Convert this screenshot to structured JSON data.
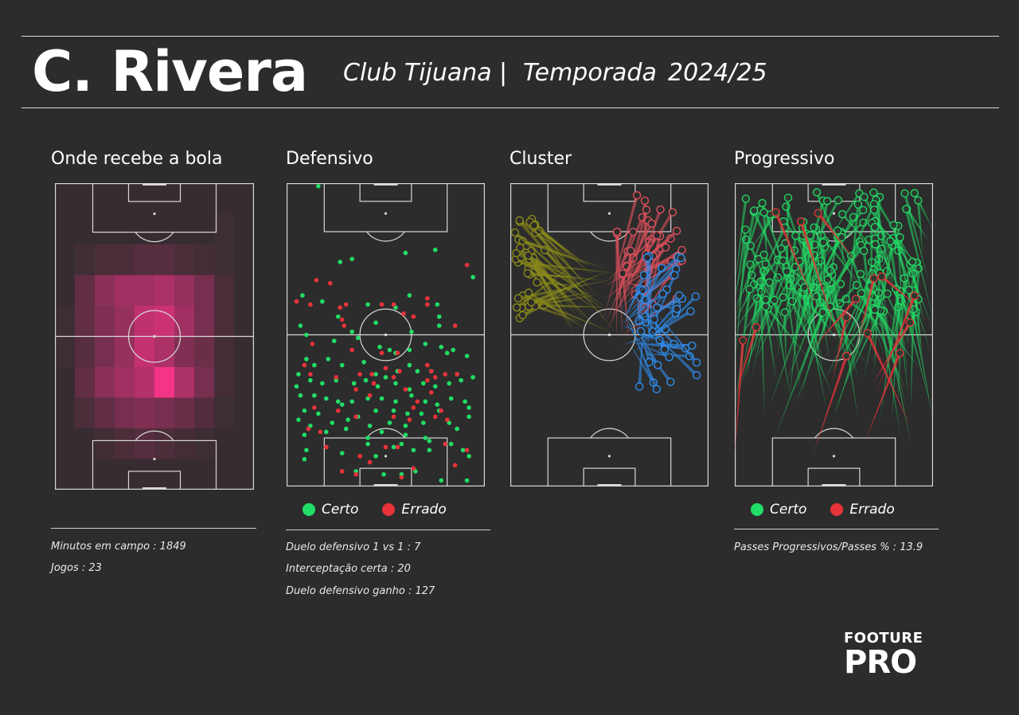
{
  "header": {
    "player_name": "C. Rivera",
    "club": "Club Tijuana",
    "divider": "|",
    "season_label": "Temporada",
    "season": "2024/25"
  },
  "panels": {
    "heatmap": {
      "title": "Onde recebe a bola"
    },
    "defensive": {
      "title": "Defensivo"
    },
    "cluster": {
      "title": "Cluster"
    },
    "progressive": {
      "title": "Progressivo"
    }
  },
  "legend": {
    "correct_label": "Certo",
    "wrong_label": "Errado",
    "correct_color": "#22dd66",
    "wrong_color": "#e8333a"
  },
  "stats": {
    "minutes": "Minutos em campo : 1849",
    "games": "Jogos : 23",
    "duel_1v1": "Duelo defensivo 1 vs 1 :  7",
    "interceptions": "Interceptação certa :  20",
    "duels_won": "Duelo defensivo ganho :  127",
    "prog_pct": "Passes Progressivos/Passes % :  13.9"
  },
  "logo": {
    "line1": "FOOTURE",
    "line2": "PRO"
  },
  "chart_data": [
    {
      "type": "heatmap",
      "title": "Onde recebe a bola",
      "grid_cols": 10,
      "grid_rows": 10,
      "values": [
        [
          0.05,
          0.05,
          0.05,
          0.05,
          0.05,
          0.05,
          0.05,
          0.05,
          0.05,
          0.05
        ],
        [
          0.05,
          0.05,
          0.05,
          0.05,
          0.05,
          0.05,
          0.05,
          0.05,
          0.08,
          0.05
        ],
        [
          0.05,
          0.1,
          0.15,
          0.15,
          0.2,
          0.2,
          0.15,
          0.12,
          0.08,
          0.05
        ],
        [
          0.05,
          0.25,
          0.45,
          0.55,
          0.55,
          0.6,
          0.5,
          0.35,
          0.15,
          0.05
        ],
        [
          0.08,
          0.25,
          0.4,
          0.5,
          0.7,
          0.75,
          0.55,
          0.35,
          0.15,
          0.05
        ],
        [
          0.08,
          0.2,
          0.35,
          0.5,
          0.72,
          0.6,
          0.4,
          0.3,
          0.12,
          0.05
        ],
        [
          0.05,
          0.25,
          0.45,
          0.55,
          0.65,
          0.95,
          0.6,
          0.35,
          0.12,
          0.05
        ],
        [
          0.05,
          0.15,
          0.25,
          0.35,
          0.4,
          0.35,
          0.3,
          0.18,
          0.08,
          0.05
        ],
        [
          0.05,
          0.05,
          0.1,
          0.15,
          0.2,
          0.15,
          0.12,
          0.08,
          0.05,
          0.05
        ],
        [
          0.05,
          0.05,
          0.05,
          0.05,
          0.05,
          0.05,
          0.05,
          0.05,
          0.05,
          0.05
        ]
      ]
    },
    {
      "type": "scatter",
      "title": "Defensivo",
      "xlim": [
        0,
        100
      ],
      "ylim": [
        0,
        100
      ],
      "series": [
        {
          "name": "Certo",
          "points": [
            [
              16,
              1
            ],
            [
              27,
              26
            ],
            [
              33,
              25
            ],
            [
              60,
              23
            ],
            [
              75,
              22
            ],
            [
              94,
              31
            ],
            [
              8,
              37
            ],
            [
              18,
              39
            ],
            [
              26,
              44
            ],
            [
              41,
              40
            ],
            [
              55,
              41
            ],
            [
              76,
              40
            ],
            [
              77,
              44
            ],
            [
              62,
              37
            ],
            [
              7,
              47
            ],
            [
              10,
              50
            ],
            [
              33,
              49
            ],
            [
              36,
              51
            ],
            [
              45,
              46
            ],
            [
              63,
              49
            ],
            [
              77,
              47
            ],
            [
              24,
              52
            ],
            [
              47,
              54
            ],
            [
              52,
              55
            ],
            [
              55,
              56
            ],
            [
              62,
              55
            ],
            [
              70,
              53
            ],
            [
              78,
              54
            ],
            [
              81,
              56
            ],
            [
              84,
              55
            ],
            [
              91,
              57
            ],
            [
              10,
              58
            ],
            [
              14,
              60
            ],
            [
              21,
              58
            ],
            [
              28,
              60
            ],
            [
              39,
              59
            ],
            [
              45,
              63
            ],
            [
              50,
              64
            ],
            [
              56,
              62
            ],
            [
              62,
              60
            ],
            [
              66,
              62
            ],
            [
              73,
              62
            ],
            [
              86,
              63
            ],
            [
              6,
              63
            ],
            [
              12,
              65
            ],
            [
              18,
              66
            ],
            [
              25,
              65
            ],
            [
              34,
              66
            ],
            [
              40,
              65
            ],
            [
              46,
              67
            ],
            [
              55,
              66
            ],
            [
              62,
              68
            ],
            [
              69,
              66
            ],
            [
              75,
              67
            ],
            [
              82,
              66
            ],
            [
              88,
              65
            ],
            [
              94,
              64
            ],
            [
              5,
              67
            ],
            [
              7,
              70
            ],
            [
              14,
              70
            ],
            [
              20,
              71
            ],
            [
              26,
              72
            ],
            [
              33,
              72
            ],
            [
              41,
              71
            ],
            [
              48,
              71
            ],
            [
              55,
              72
            ],
            [
              63,
              70
            ],
            [
              70,
              72
            ],
            [
              76,
              73
            ],
            [
              83,
              71
            ],
            [
              90,
              72
            ],
            [
              9,
              75
            ],
            [
              16,
              76
            ],
            [
              28,
              73
            ],
            [
              36,
              77
            ],
            [
              45,
              75
            ],
            [
              54,
              75
            ],
            [
              61,
              76
            ],
            [
              68,
              76
            ],
            [
              77,
              75
            ],
            [
              92,
              74
            ],
            [
              6,
              78
            ],
            [
              12,
              80
            ],
            [
              23,
              79
            ],
            [
              31,
              78
            ],
            [
              42,
              80
            ],
            [
              52,
              79
            ],
            [
              60,
              80
            ],
            [
              69,
              79
            ],
            [
              82,
              79
            ],
            [
              92,
              77
            ],
            [
              9,
              83
            ],
            [
              20,
              82
            ],
            [
              30,
              81
            ],
            [
              41,
              84
            ],
            [
              48,
              82
            ],
            [
              60,
              83
            ],
            [
              70,
              84
            ],
            [
              86,
              81
            ],
            [
              41,
              86
            ],
            [
              58,
              86
            ],
            [
              72,
              85
            ],
            [
              83,
              86
            ],
            [
              89,
              88
            ],
            [
              10,
              88
            ],
            [
              28,
              89
            ],
            [
              45,
              90
            ],
            [
              54,
              87
            ],
            [
              64,
              88
            ],
            [
              72,
              88
            ],
            [
              92,
              90
            ],
            [
              9,
              91
            ],
            [
              35,
              95
            ],
            [
              49,
              96
            ],
            [
              58,
              96
            ],
            [
              65,
              95
            ],
            [
              78,
              98
            ],
            [
              91,
              98
            ]
          ]
        },
        {
          "name": "Errado",
          "points": [
            [
              91,
              27
            ],
            [
              15,
              32
            ],
            [
              22,
              33
            ],
            [
              27,
              41
            ],
            [
              28,
              45
            ],
            [
              29,
              47
            ],
            [
              5,
              39
            ],
            [
              12,
              40
            ],
            [
              30,
              40
            ],
            [
              48,
              40
            ],
            [
              54,
              40
            ],
            [
              71,
              38
            ],
            [
              71,
              40
            ],
            [
              59,
              43
            ],
            [
              64,
              44
            ],
            [
              85,
              47
            ],
            [
              13,
              53
            ],
            [
              33,
              55
            ],
            [
              48,
              56
            ],
            [
              56,
              56
            ],
            [
              9,
              60
            ],
            [
              12,
              63
            ],
            [
              37,
              63
            ],
            [
              50,
              61
            ],
            [
              57,
              62
            ],
            [
              71,
              60
            ],
            [
              73,
              62
            ],
            [
              80,
              63
            ],
            [
              86,
              63
            ],
            [
              25,
              64
            ],
            [
              43,
              63
            ],
            [
              54,
              64
            ],
            [
              71,
              65
            ],
            [
              75,
              64
            ],
            [
              44,
              66
            ],
            [
              60,
              68
            ],
            [
              73,
              69
            ],
            [
              35,
              68
            ],
            [
              42,
              70
            ],
            [
              66,
              72
            ],
            [
              14,
              74
            ],
            [
              26,
              75
            ],
            [
              64,
              74
            ],
            [
              78,
              75
            ],
            [
              35,
              77
            ],
            [
              54,
              77
            ],
            [
              62,
              78
            ],
            [
              75,
              77
            ],
            [
              81,
              78
            ],
            [
              11,
              81
            ],
            [
              17,
              82
            ],
            [
              20,
              87
            ],
            [
              50,
              87
            ],
            [
              56,
              87
            ],
            [
              80,
              86
            ],
            [
              91,
              88
            ],
            [
              37,
              90
            ],
            [
              42,
              92
            ],
            [
              64,
              94
            ],
            [
              85,
              93
            ],
            [
              28,
              95
            ],
            [
              35,
              96
            ],
            [
              58,
              97
            ]
          ]
        }
      ],
      "legend": [
        "Certo",
        "Errado"
      ]
    },
    {
      "type": "cluster_arrows",
      "title": "Cluster",
      "xlim": [
        0,
        100
      ],
      "ylim": [
        0,
        100
      ],
      "clusters": [
        {
          "color": "#8a8a1a",
          "count": 40,
          "origin_x": [
            2,
            18
          ],
          "origin_y": [
            11,
            45
          ],
          "end_x": [
            30,
            55
          ],
          "end_y": [
            25,
            50
          ]
        },
        {
          "color": "#e0505c",
          "count": 40,
          "origin_x": [
            52,
            88
          ],
          "origin_y": [
            3,
            40
          ],
          "end_x": [
            45,
            70
          ],
          "end_y": [
            30,
            52
          ]
        },
        {
          "color": "#2e8ef0",
          "count": 45,
          "origin_x": [
            65,
            95
          ],
          "origin_y": [
            24,
            68
          ],
          "end_x": [
            55,
            75
          ],
          "end_y": [
            38,
            58
          ]
        }
      ]
    },
    {
      "type": "arrows",
      "title": "Progressivo",
      "xlim": [
        0,
        100
      ],
      "ylim": [
        0,
        100
      ],
      "series": [
        {
          "name": "Certo",
          "count": 170
        },
        {
          "name": "Errado",
          "count": 14
        }
      ],
      "legend": [
        "Certo",
        "Errado"
      ]
    }
  ]
}
